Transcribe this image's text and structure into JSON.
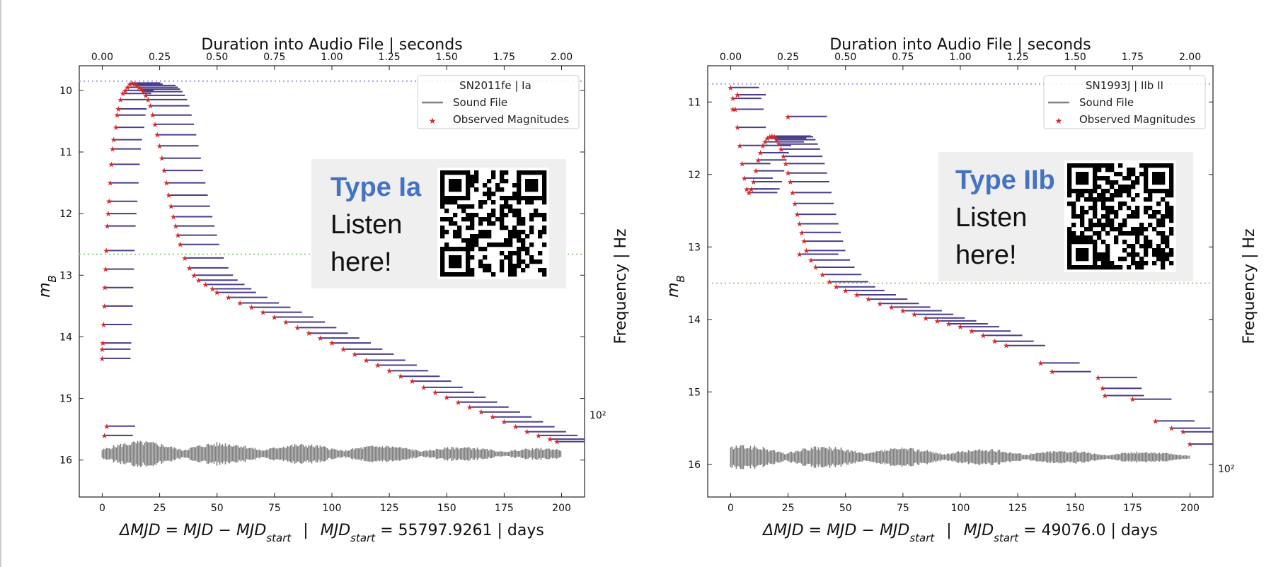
{
  "chart_data": [
    {
      "type": "scatter",
      "top_axis_label": "Duration into Audio File | seconds",
      "top_ticks": [
        "0.00",
        "0.25",
        "0.50",
        "0.75",
        "1.00",
        "1.25",
        "1.50",
        "1.75",
        "2.00"
      ],
      "x_ticks": [
        "0",
        "25",
        "50",
        "75",
        "100",
        "125",
        "150",
        "175",
        "200"
      ],
      "y_ticks": [
        "10",
        "11",
        "12",
        "13",
        "14",
        "15",
        "16"
      ],
      "ylabel": "m",
      "ylabel_sub": "B",
      "right_label": "Frequency | Hz",
      "right_tick": "10²",
      "xlabel_parts": {
        "delta": "ΔMJD",
        "eq": "=",
        "mjd": "MJD",
        "minus": "−",
        "mjd_start": "MJD",
        "start_sub": "start",
        "sep": "|",
        "value": "= 55797.9261",
        "unit": "| days"
      },
      "xlim": [
        -10,
        210
      ],
      "ylim": [
        16.6,
        9.6
      ],
      "dotted_lines": [
        9.85,
        12.66
      ],
      "legend_title": "SN2011fe |  Ia",
      "legend_items": [
        "Sound File",
        "Observed Magnitudes"
      ],
      "qr_title": "Type Ia",
      "qr_line1": "Listen",
      "qr_line2": "here!",
      "colors": {
        "points": "#D62728",
        "segments": "#483D8B",
        "sound": "#808080"
      },
      "points": [
        [
          0,
          14.35
        ],
        [
          0.3,
          14.1
        ],
        [
          0.6,
          13.8
        ],
        [
          1,
          13.5
        ],
        [
          1.2,
          13.2
        ],
        [
          1.5,
          12.9
        ],
        [
          1.8,
          12.6
        ],
        [
          2.2,
          12.2
        ],
        [
          2.6,
          12.0
        ],
        [
          3,
          11.8
        ],
        [
          3.5,
          11.5
        ],
        [
          4,
          11.2
        ],
        [
          4.5,
          10.95
        ],
        [
          5,
          10.8
        ],
        [
          6,
          10.6
        ],
        [
          6.5,
          10.4
        ],
        [
          7,
          10.3
        ],
        [
          8,
          10.15
        ],
        [
          9,
          10.05
        ],
        [
          10,
          10.0
        ],
        [
          11,
          9.95
        ],
        [
          12,
          9.9
        ],
        [
          13,
          9.88
        ],
        [
          14,
          9.9
        ],
        [
          15,
          9.92
        ],
        [
          16,
          9.95
        ],
        [
          17,
          9.98
        ],
        [
          18,
          10.02
        ],
        [
          19,
          10.08
        ],
        [
          20,
          10.15
        ],
        [
          21,
          10.25
        ],
        [
          22,
          10.4
        ],
        [
          23,
          10.55
        ],
        [
          24,
          10.72
        ],
        [
          25,
          10.9
        ],
        [
          26,
          11.1
        ],
        [
          27,
          11.3
        ],
        [
          28,
          11.5
        ],
        [
          29,
          11.7
        ],
        [
          30,
          11.88
        ],
        [
          31,
          12.05
        ],
        [
          32,
          12.2
        ],
        [
          33,
          12.35
        ],
        [
          34,
          12.5
        ],
        [
          36,
          12.72
        ],
        [
          38,
          12.88
        ],
        [
          40,
          13.0
        ],
        [
          42,
          13.08
        ],
        [
          45,
          13.15
        ],
        [
          48,
          13.22
        ],
        [
          50,
          13.28
        ],
        [
          55,
          13.36
        ],
        [
          60,
          13.45
        ],
        [
          65,
          13.52
        ],
        [
          70,
          13.6
        ],
        [
          75,
          13.68
        ],
        [
          80,
          13.76
        ],
        [
          85,
          13.85
        ],
        [
          90,
          13.94
        ],
        [
          95,
          14.02
        ],
        [
          100,
          14.1
        ],
        [
          105,
          14.2
        ],
        [
          110,
          14.28
        ],
        [
          115,
          14.38
        ],
        [
          120,
          14.46
        ],
        [
          125,
          14.55
        ],
        [
          130,
          14.64
        ],
        [
          135,
          14.72
        ],
        [
          140,
          14.82
        ],
        [
          145,
          14.9
        ],
        [
          150,
          14.98
        ],
        [
          155,
          15.06
        ],
        [
          160,
          15.14
        ],
        [
          165,
          15.22
        ],
        [
          170,
          15.3
        ],
        [
          175,
          15.38
        ],
        [
          180,
          15.46
        ],
        [
          185,
          15.54
        ],
        [
          190,
          15.6
        ],
        [
          195,
          15.66
        ],
        [
          198,
          15.7
        ],
        [
          2,
          15.45
        ],
        [
          1,
          15.6
        ],
        [
          0,
          14.2
        ]
      ]
    },
    {
      "type": "scatter",
      "top_axis_label": "Duration into Audio File | seconds",
      "top_ticks": [
        "0.00",
        "0.25",
        "0.50",
        "0.75",
        "1.00",
        "1.25",
        "1.50",
        "1.75",
        "2.00"
      ],
      "x_ticks": [
        "0",
        "25",
        "50",
        "75",
        "100",
        "125",
        "150",
        "175",
        "200"
      ],
      "y_ticks": [
        "11",
        "12",
        "13",
        "14",
        "15",
        "16"
      ],
      "ylabel": "m",
      "ylabel_sub": "B",
      "right_label": "Frequency | Hz",
      "right_tick": "10²",
      "xlabel_parts": {
        "delta": "ΔMJD",
        "eq": "=",
        "mjd": "MJD",
        "minus": "−",
        "mjd_start": "MJD",
        "start_sub": "start",
        "sep": "|",
        "value": "= 49076.0",
        "unit": "| days"
      },
      "xlim": [
        -10,
        210
      ],
      "ylim": [
        16.45,
        10.5
      ],
      "dotted_lines": [
        10.75,
        13.5
      ],
      "legend_title": "SN1993J |  IIb II",
      "legend_items": [
        "Sound File",
        "Observed Magnitudes"
      ],
      "qr_title": "Type IIb",
      "qr_line1": "Listen",
      "qr_line2": "here!",
      "colors": {
        "points": "#D62728",
        "segments": "#483D8B",
        "sound": "#808080"
      },
      "points": [
        [
          0,
          10.8
        ],
        [
          1,
          10.95
        ],
        [
          2,
          11.1
        ],
        [
          3,
          11.35
        ],
        [
          4,
          11.6
        ],
        [
          5,
          11.85
        ],
        [
          6,
          12.05
        ],
        [
          7,
          12.2
        ],
        [
          8,
          12.25
        ],
        [
          9,
          12.2
        ],
        [
          10,
          12.1
        ],
        [
          11,
          11.95
        ],
        [
          12,
          11.8
        ],
        [
          13,
          11.7
        ],
        [
          14,
          11.6
        ],
        [
          15,
          11.55
        ],
        [
          16,
          11.5
        ],
        [
          17,
          11.48
        ],
        [
          18,
          11.47
        ],
        [
          19,
          11.48
        ],
        [
          20,
          11.52
        ],
        [
          21,
          11.58
        ],
        [
          22,
          11.65
        ],
        [
          23,
          11.75
        ],
        [
          24,
          11.85
        ],
        [
          25,
          11.98
        ],
        [
          26,
          12.1
        ],
        [
          27,
          12.25
        ],
        [
          28,
          12.4
        ],
        [
          29,
          12.55
        ],
        [
          30,
          12.68
        ],
        [
          31,
          12.8
        ],
        [
          32,
          12.92
        ],
        [
          33,
          13.05
        ],
        [
          35,
          13.18
        ],
        [
          37,
          13.28
        ],
        [
          40,
          13.38
        ],
        [
          43,
          13.48
        ],
        [
          46,
          13.55
        ],
        [
          50,
          13.6
        ],
        [
          55,
          13.66
        ],
        [
          60,
          13.72
        ],
        [
          65,
          13.78
        ],
        [
          70,
          13.83
        ],
        [
          75,
          13.88
        ],
        [
          80,
          13.93
        ],
        [
          85,
          13.98
        ],
        [
          90,
          14.02
        ],
        [
          95,
          14.06
        ],
        [
          100,
          14.1
        ],
        [
          105,
          14.16
        ],
        [
          110,
          14.22
        ],
        [
          115,
          14.3
        ],
        [
          120,
          14.36
        ],
        [
          135,
          14.6
        ],
        [
          140,
          14.72
        ],
        [
          160,
          14.8
        ],
        [
          162,
          14.95
        ],
        [
          163,
          15.05
        ],
        [
          175,
          15.1
        ],
        [
          185,
          15.4
        ],
        [
          192,
          15.5
        ],
        [
          197,
          15.55
        ],
        [
          200,
          15.72
        ],
        [
          1,
          11.1
        ],
        [
          3,
          10.9
        ],
        [
          25,
          11.2
        ],
        [
          30,
          13.1
        ]
      ]
    }
  ]
}
